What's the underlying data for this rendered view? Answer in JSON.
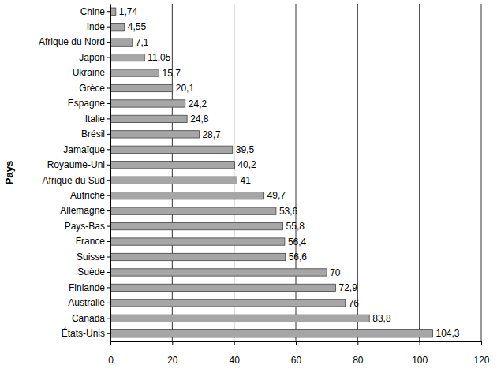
{
  "chart_data": {
    "type": "bar",
    "orientation": "horizontal",
    "y_label": "Pays",
    "categories": [
      "Chine",
      "Inde",
      "Afrique du Nord",
      "Japon",
      "Ukraine",
      "Grèce",
      "Espagne",
      "Italie",
      "Brésil",
      "Jamaïque",
      "Royaume-Uni",
      "Afrique du Sud",
      "Autriche",
      "Allemagne",
      "Pays-Bas",
      "France",
      "Suisse",
      "Suède",
      "Finlande",
      "Australie",
      "Canada",
      "États-Unis"
    ],
    "values": [
      1.74,
      4.55,
      7.1,
      11.05,
      15.7,
      20.1,
      24.2,
      24.8,
      28.7,
      39.5,
      40.2,
      41,
      49.7,
      53.6,
      55.8,
      56.4,
      56.6,
      70,
      72.9,
      76,
      83.8,
      104.3
    ],
    "value_labels": [
      "1,74",
      "4,55",
      "7,1",
      "11,05",
      "15,7",
      "20,1",
      "24,2",
      "24,8",
      "28,7",
      "39,5",
      "40,2",
      "41",
      "49,7",
      "53,6",
      "55,8",
      "56,4",
      "56,6",
      "70",
      "72,9",
      "76",
      "83,8",
      "104,3"
    ],
    "data_labels": true,
    "color": "#a6a6a6",
    "xlim": [
      0,
      120
    ],
    "xticks": [
      0,
      20,
      40,
      60,
      80,
      100,
      120
    ],
    "grid": true
  }
}
